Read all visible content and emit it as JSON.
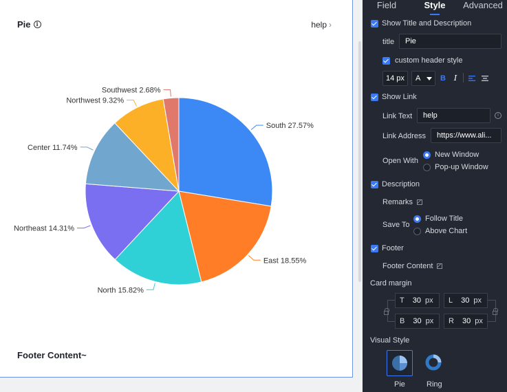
{
  "card": {
    "title": "Pie",
    "help": "help",
    "footer": "Footer Content~"
  },
  "chart_data": {
    "type": "pie",
    "slices": [
      {
        "name": "South",
        "value": 27.57,
        "label": "South 27.57%",
        "color": "#3c89f5"
      },
      {
        "name": "East",
        "value": 18.55,
        "label": "East 18.55%",
        "color": "#ff7d26"
      },
      {
        "name": "North",
        "value": 15.82,
        "label": "North 15.82%",
        "color": "#2fd1d6"
      },
      {
        "name": "Northeast",
        "value": 14.31,
        "label": "Northeast 14.31%",
        "color": "#7a6ff0"
      },
      {
        "name": "Center",
        "value": 11.74,
        "label": "Center 11.74%",
        "color": "#71a7cf"
      },
      {
        "name": "Northwest",
        "value": 9.32,
        "label": "Northwest 9.32%",
        "color": "#fcb027"
      },
      {
        "name": "Southwest",
        "value": 2.68,
        "label": "Southwest 2.68%",
        "color": "#e0796b"
      }
    ]
  },
  "panel": {
    "tabs": [
      "Field",
      "Style",
      "Advanced"
    ],
    "active_tab": "Style",
    "show_title": "Show Title and Description",
    "title_label": "title",
    "title_value": "Pie",
    "custom_header": "custom header style",
    "font_size": "14 px",
    "font_color_btn": "A",
    "bold_btn": "B",
    "italic_btn": "I",
    "show_link": "Show Link",
    "link_text_label": "Link Text",
    "link_text_value": "help",
    "link_address_label": "Link Address",
    "link_address_value": "https://www.ali...",
    "open_with_label": "Open With",
    "open_new": "New Window",
    "open_popup": "Pop-up Window",
    "description": "Description",
    "remarks": "Remarks",
    "save_to_label": "Save To",
    "follow_title": "Follow Title",
    "above_chart": "Above Chart",
    "footer": "Footer",
    "footer_content": "Footer Content",
    "card_margin": "Card margin",
    "margin": {
      "t_label": "T",
      "t_value": "30",
      "t_unit": "px",
      "l_label": "L",
      "l_value": "30",
      "l_unit": "px",
      "b_label": "B",
      "b_value": "30",
      "b_unit": "px",
      "r_label": "R",
      "r_value": "30",
      "r_unit": "px"
    },
    "visual_style": "Visual Style",
    "vs_pie": "Pie",
    "vs_ring": "Ring"
  }
}
